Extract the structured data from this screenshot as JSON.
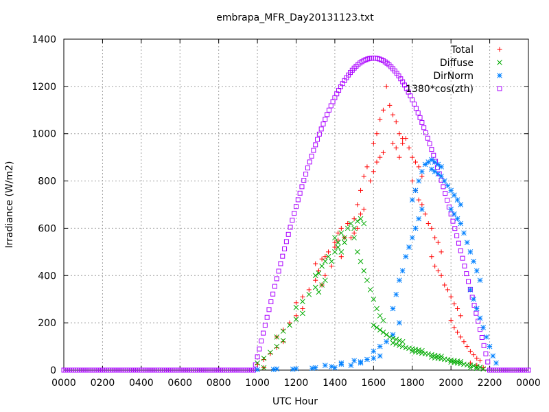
{
  "chart_data": {
    "type": "scatter",
    "title": "embrapa_MFR_Day20131123.txt",
    "xlabel": "UTC Hour",
    "ylabel": "Irradiance (W/m2)",
    "xlim": [
      0,
      2400
    ],
    "ylim": [
      0,
      1400
    ],
    "x_ticks": [
      "0000",
      "0200",
      "0400",
      "0600",
      "0800",
      "1000",
      "1200",
      "1400",
      "1600",
      "1800",
      "2000",
      "2200",
      "0000"
    ],
    "y_ticks": [
      "0",
      "200",
      "400",
      "600",
      "800",
      "1000",
      "1200",
      "1400"
    ],
    "grid": true,
    "legend_position": "top-right",
    "series": [
      {
        "name": "Total",
        "color": "#ff0000",
        "marker": "plus",
        "points": [
          [
            980,
            10
          ],
          [
            1000,
            25
          ],
          [
            1020,
            45
          ],
          [
            1040,
            70
          ],
          [
            1060,
            95
          ],
          [
            1080,
            120
          ],
          [
            1100,
            140
          ],
          [
            1120,
            170
          ],
          [
            1140,
            200
          ],
          [
            1160,
            230
          ],
          [
            1180,
            260
          ],
          [
            1200,
            285
          ],
          [
            1220,
            310
          ],
          [
            1240,
            340
          ],
          [
            1260,
            380
          ],
          [
            1270,
            420
          ],
          [
            1280,
            360
          ],
          [
            1290,
            400
          ],
          [
            1300,
            450
          ],
          [
            1310,
            420
          ],
          [
            1320,
            470
          ],
          [
            1330,
            480
          ],
          [
            1340,
            500
          ],
          [
            1350,
            440
          ],
          [
            1360,
            520
          ],
          [
            1370,
            550
          ],
          [
            1380,
            480
          ],
          [
            1390,
            560
          ],
          [
            1400,
            540
          ],
          [
            1410,
            580
          ],
          [
            1420,
            600
          ],
          [
            1430,
            560
          ],
          [
            1440,
            620
          ],
          [
            1450,
            560
          ],
          [
            1460,
            640
          ],
          [
            1470,
            600
          ],
          [
            1480,
            660
          ],
          [
            1490,
            680
          ],
          [
            1500,
            580
          ],
          [
            1510,
            700
          ],
          [
            1520,
            760
          ],
          [
            1530,
            820
          ],
          [
            1540,
            860
          ],
          [
            1550,
            800
          ],
          [
            1560,
            840
          ],
          [
            1570,
            880
          ],
          [
            1580,
            900
          ],
          [
            1590,
            920
          ],
          [
            1600,
            960
          ],
          [
            1610,
            1000
          ],
          [
            1620,
            1060
          ],
          [
            1630,
            1100
          ],
          [
            1640,
            1200
          ],
          [
            1650,
            1120
          ],
          [
            1660,
            1080
          ],
          [
            1670,
            1050
          ],
          [
            1680,
            1000
          ],
          [
            1690,
            980
          ],
          [
            1700,
            960
          ],
          [
            1710,
            940
          ],
          [
            1720,
            900
          ],
          [
            1730,
            960
          ],
          [
            1740,
            980
          ],
          [
            1750,
            940
          ],
          [
            1760,
            900
          ],
          [
            1770,
            880
          ],
          [
            1780,
            860
          ],
          [
            1790,
            820
          ],
          [
            1800,
            800
          ],
          [
            1810,
            760
          ],
          [
            1820,
            720
          ],
          [
            1830,
            700
          ],
          [
            1840,
            660
          ],
          [
            1850,
            620
          ],
          [
            1860,
            600
          ],
          [
            1870,
            560
          ],
          [
            1880,
            540
          ],
          [
            1890,
            500
          ],
          [
            1900,
            480
          ],
          [
            1910,
            440
          ],
          [
            1920,
            420
          ],
          [
            1930,
            400
          ],
          [
            1940,
            360
          ],
          [
            1950,
            340
          ],
          [
            1960,
            310
          ],
          [
            1970,
            280
          ],
          [
            1980,
            260
          ],
          [
            1990,
            230
          ],
          [
            2000,
            210
          ],
          [
            2010,
            180
          ],
          [
            2020,
            160
          ],
          [
            2030,
            140
          ],
          [
            2040,
            120
          ],
          [
            2050,
            100
          ],
          [
            2060,
            80
          ],
          [
            2070,
            65
          ],
          [
            2080,
            50
          ],
          [
            2090,
            40
          ],
          [
            2100,
            30
          ],
          [
            2120,
            20
          ],
          [
            2140,
            10
          ]
        ]
      },
      {
        "name": "Diffuse",
        "color": "#00aa00",
        "marker": "cross",
        "points": [
          [
            980,
            10
          ],
          [
            1000,
            30
          ],
          [
            1020,
            50
          ],
          [
            1040,
            75
          ],
          [
            1060,
            100
          ],
          [
            1080,
            125
          ],
          [
            1100,
            140
          ],
          [
            1120,
            165
          ],
          [
            1140,
            190
          ],
          [
            1160,
            215
          ],
          [
            1180,
            240
          ],
          [
            1200,
            265
          ],
          [
            1220,
            290
          ],
          [
            1240,
            320
          ],
          [
            1260,
            350
          ],
          [
            1270,
            330
          ],
          [
            1280,
            360
          ],
          [
            1290,
            380
          ],
          [
            1300,
            400
          ],
          [
            1310,
            410
          ],
          [
            1320,
            440
          ],
          [
            1330,
            460
          ],
          [
            1340,
            480
          ],
          [
            1350,
            460
          ],
          [
            1360,
            500
          ],
          [
            1370,
            520
          ],
          [
            1380,
            500
          ],
          [
            1390,
            540
          ],
          [
            1400,
            560
          ],
          [
            1410,
            540
          ],
          [
            1420,
            580
          ],
          [
            1430,
            560
          ],
          [
            1440,
            600
          ],
          [
            1450,
            620
          ],
          [
            1460,
            600
          ],
          [
            1470,
            630
          ],
          [
            1480,
            640
          ],
          [
            1490,
            620
          ],
          [
            1500,
            560
          ],
          [
            1510,
            500
          ],
          [
            1520,
            460
          ],
          [
            1530,
            420
          ],
          [
            1540,
            380
          ],
          [
            1550,
            340
          ],
          [
            1560,
            300
          ],
          [
            1570,
            260
          ],
          [
            1580,
            230
          ],
          [
            1590,
            210
          ],
          [
            1600,
            190
          ],
          [
            1610,
            180
          ],
          [
            1620,
            170
          ],
          [
            1630,
            160
          ],
          [
            1640,
            150
          ],
          [
            1650,
            140
          ],
          [
            1660,
            135
          ],
          [
            1670,
            130
          ],
          [
            1680,
            125
          ],
          [
            1690,
            120
          ],
          [
            1700,
            115
          ],
          [
            1710,
            110
          ],
          [
            1720,
            105
          ],
          [
            1730,
            100
          ],
          [
            1740,
            95
          ],
          [
            1750,
            92
          ],
          [
            1760,
            90
          ],
          [
            1770,
            88
          ],
          [
            1780,
            85
          ],
          [
            1790,
            82
          ],
          [
            1800,
            80
          ],
          [
            1810,
            77
          ],
          [
            1820,
            75
          ],
          [
            1830,
            72
          ],
          [
            1840,
            70
          ],
          [
            1850,
            68
          ],
          [
            1860,
            65
          ],
          [
            1870,
            62
          ],
          [
            1880,
            60
          ],
          [
            1890,
            58
          ],
          [
            1900,
            55
          ],
          [
            1910,
            52
          ],
          [
            1920,
            50
          ],
          [
            1930,
            48
          ],
          [
            1940,
            46
          ],
          [
            1950,
            44
          ],
          [
            1960,
            42
          ],
          [
            1970,
            40
          ],
          [
            1980,
            38
          ],
          [
            1990,
            36
          ],
          [
            2000,
            34
          ],
          [
            2010,
            32
          ],
          [
            2020,
            30
          ],
          [
            2030,
            28
          ],
          [
            2040,
            25
          ],
          [
            2050,
            22
          ],
          [
            2060,
            20
          ],
          [
            2070,
            18
          ],
          [
            2080,
            15
          ],
          [
            2090,
            12
          ],
          [
            2100,
            10
          ],
          [
            2120,
            8
          ],
          [
            2140,
            5
          ]
        ]
      },
      {
        "name": "DirNorm",
        "color": "#0080ff",
        "marker": "star",
        "points": [
          [
            1000,
            2
          ],
          [
            1050,
            3
          ],
          [
            1100,
            5
          ],
          [
            1150,
            4
          ],
          [
            1200,
            6
          ],
          [
            1250,
            8
          ],
          [
            1300,
            10
          ],
          [
            1330,
            20
          ],
          [
            1350,
            15
          ],
          [
            1380,
            25
          ],
          [
            1400,
            10
          ],
          [
            1420,
            30
          ],
          [
            1450,
            20
          ],
          [
            1480,
            35
          ],
          [
            1500,
            40
          ],
          [
            1520,
            30
          ],
          [
            1540,
            45
          ],
          [
            1560,
            50
          ],
          [
            1580,
            60
          ],
          [
            1600,
            80
          ],
          [
            1620,
            100
          ],
          [
            1640,
            120
          ],
          [
            1660,
            150
          ],
          [
            1680,
            200
          ],
          [
            1700,
            260
          ],
          [
            1710,
            320
          ],
          [
            1720,
            380
          ],
          [
            1730,
            420
          ],
          [
            1740,
            480
          ],
          [
            1750,
            520
          ],
          [
            1760,
            560
          ],
          [
            1770,
            600
          ],
          [
            1780,
            640
          ],
          [
            1790,
            680
          ],
          [
            1800,
            720
          ],
          [
            1810,
            760
          ],
          [
            1820,
            800
          ],
          [
            1830,
            840
          ],
          [
            1840,
            870
          ],
          [
            1850,
            880
          ],
          [
            1860,
            890
          ],
          [
            1870,
            880
          ],
          [
            1880,
            870
          ],
          [
            1890,
            860
          ],
          [
            1900,
            850
          ],
          [
            1910,
            840
          ],
          [
            1920,
            830
          ],
          [
            1930,
            820
          ],
          [
            1940,
            800
          ],
          [
            1950,
            780
          ],
          [
            1960,
            760
          ],
          [
            1970,
            740
          ],
          [
            1980,
            720
          ],
          [
            1990,
            700
          ],
          [
            2000,
            680
          ],
          [
            2010,
            660
          ],
          [
            2020,
            640
          ],
          [
            2030,
            620
          ],
          [
            2040,
            580
          ],
          [
            2050,
            540
          ],
          [
            2060,
            500
          ],
          [
            2070,
            460
          ],
          [
            2080,
            420
          ],
          [
            2090,
            380
          ],
          [
            2100,
            340
          ],
          [
            2110,
            300
          ],
          [
            2120,
            260
          ],
          [
            2130,
            220
          ],
          [
            2140,
            180
          ],
          [
            2150,
            140
          ],
          [
            2160,
            100
          ],
          [
            2170,
            60
          ],
          [
            2180,
            30
          ]
        ]
      },
      {
        "name": "1380*cos(zth)",
        "color": "#aa00ff",
        "marker": "square",
        "function": {
          "peak": 1320,
          "center_hhmm": 1600,
          "start_hhmm": 950,
          "end_hhmm": 2200
        }
      }
    ]
  }
}
